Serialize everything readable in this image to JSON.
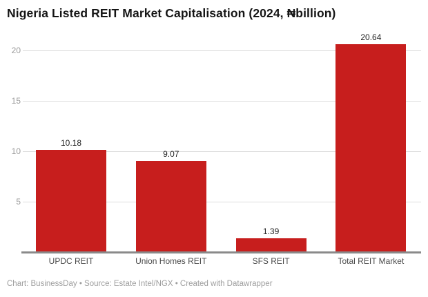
{
  "header": {
    "title": "Nigeria Listed REIT Market Capitalisation (2024, ₦billion)"
  },
  "chart_data": {
    "type": "bar",
    "title": "Nigeria Listed REIT Market Capitalisation (2024, ₦billion)",
    "categories": [
      "UPDC REIT",
      "Union Homes REIT",
      "SFS REIT",
      "Total REIT Market"
    ],
    "values": [
      10.18,
      9.07,
      1.39,
      20.64
    ],
    "value_labels": [
      "10.18",
      "9.07",
      "1.39",
      "20.64"
    ],
    "xlabel": "",
    "ylabel": "",
    "ylim": [
      0,
      21.5
    ],
    "yticks": [
      5,
      10,
      15,
      20
    ],
    "grid": true,
    "legend": false,
    "bar_color": "#c71e1d"
  },
  "footer": {
    "text": "Chart: BusinessDay • Source: Estate Intel/NGX • Created with Datawrapper"
  },
  "colors": {
    "bar": "#c71e1d",
    "gridline": "#dcdcdc",
    "axis_line": "#8a8a8a",
    "ytick_text": "#9b9b9b",
    "xtick_text": "#4b4b4b",
    "value_text": "#222222",
    "title_text": "#151515",
    "footer_text": "#9e9e9e",
    "background": "#ffffff"
  }
}
